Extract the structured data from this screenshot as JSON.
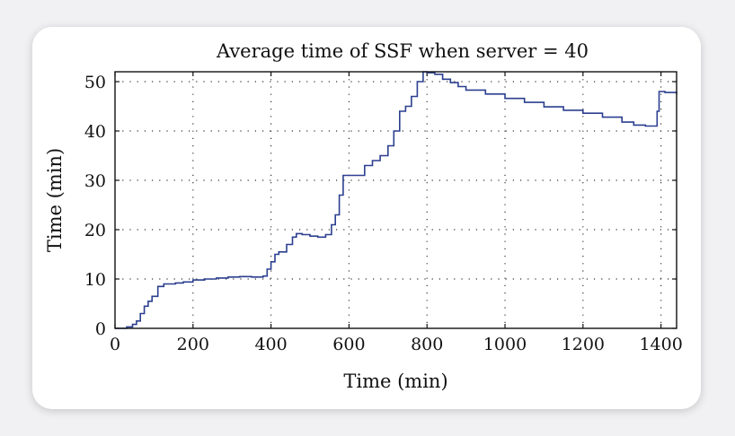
{
  "chart_data": {
    "type": "line",
    "title": "Average time of SSF when server = 40",
    "xlabel": "Time (min)",
    "ylabel": "Time (min)",
    "xlim": [
      0,
      1440
    ],
    "ylim": [
      0,
      52
    ],
    "xticks": [
      0,
      200,
      400,
      600,
      800,
      1000,
      1200,
      1400
    ],
    "yticks": [
      0,
      10,
      20,
      30,
      40,
      50
    ],
    "grid": true,
    "line_color": "#2b3f8f",
    "series": [
      {
        "name": "",
        "x": [
          0,
          15,
          30,
          45,
          55,
          65,
          75,
          85,
          95,
          110,
          125,
          140,
          155,
          175,
          200,
          230,
          260,
          290,
          320,
          350,
          380,
          390,
          400,
          410,
          420,
          440,
          455,
          465,
          480,
          500,
          520,
          540,
          555,
          565,
          575,
          585,
          595,
          605,
          620,
          640,
          660,
          680,
          700,
          715,
          730,
          745,
          760,
          775,
          790,
          800,
          820,
          840,
          860,
          880,
          900,
          950,
          1000,
          1050,
          1100,
          1150,
          1200,
          1250,
          1300,
          1330,
          1360,
          1380,
          1390,
          1395,
          1410,
          1440
        ],
        "y": [
          0,
          0,
          0.3,
          0.8,
          1.5,
          3,
          4.5,
          5.5,
          6.5,
          8.5,
          9,
          9,
          9.2,
          9.4,
          9.8,
          10,
          10.2,
          10.4,
          10.5,
          10.4,
          10.6,
          12,
          13.5,
          15,
          15.5,
          17,
          18.5,
          19.2,
          19,
          18.7,
          18.5,
          19,
          21,
          23,
          27,
          31,
          31,
          31,
          31,
          33,
          34,
          35,
          37,
          40,
          44,
          45,
          47,
          50,
          52,
          51.8,
          51.5,
          50.5,
          49.8,
          49,
          48.3,
          47.5,
          46.6,
          45.8,
          44.9,
          44.2,
          43.6,
          42.8,
          41.8,
          41.2,
          41,
          41,
          44,
          48,
          47.8,
          47.5
        ]
      }
    ]
  }
}
